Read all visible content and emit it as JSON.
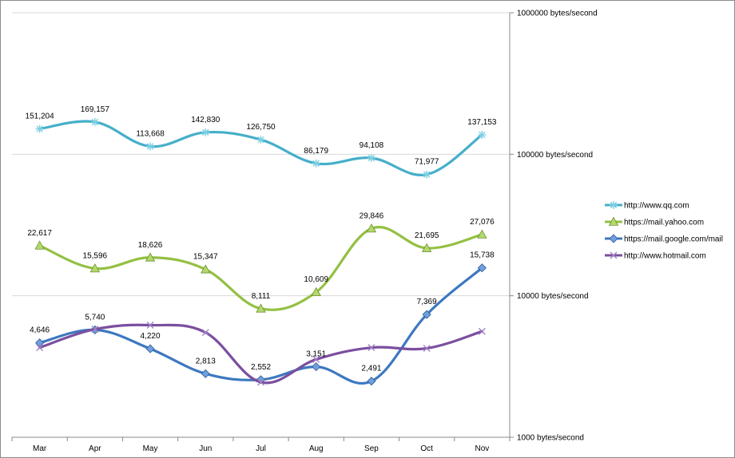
{
  "chart_data": {
    "type": "line",
    "title": "",
    "xlabel": "",
    "ylabel": "",
    "categories": [
      "Mar",
      "Apr",
      "May",
      "Jun",
      "Jul",
      "Aug",
      "Sep",
      "Oct",
      "Nov"
    ],
    "y_axis": {
      "scale": "log",
      "position": "right",
      "ylim": [
        1000,
        1000000
      ],
      "ticks": [
        {
          "value": 1000,
          "label": "1000 bytes/second"
        },
        {
          "value": 10000,
          "label": "10000 bytes/second"
        },
        {
          "value": 100000,
          "label": "100000 bytes/second"
        },
        {
          "value": 1000000,
          "label": "1000000 bytes/second"
        }
      ],
      "grid": true
    },
    "legend": {
      "placement": "right"
    },
    "series": [
      {
        "name": "http://www.qq.com",
        "color": "#45afc9",
        "marker": "asterisk",
        "values": [
          151204,
          169157,
          113668,
          142830,
          126750,
          86179,
          94108,
          71977,
          137153
        ],
        "labels": [
          "151,204",
          "169,157",
          "113,668",
          "142,830",
          "126,750",
          "86,179",
          "94,108",
          "71,977",
          "137,153"
        ]
      },
      {
        "name": "https://mail.yahoo.com",
        "color": "#93c042",
        "marker": "triangle",
        "values": [
          22617,
          15596,
          18626,
          15347,
          8111,
          10609,
          29846,
          21695,
          27076
        ],
        "labels": [
          "22,617",
          "15,596",
          "18,626",
          "15,347",
          "8,111",
          "10,609",
          "29,846",
          "21,695",
          "27,076"
        ]
      },
      {
        "name": "https://mail.google.com/mail",
        "color": "#3d78c0",
        "marker": "diamond",
        "values": [
          4646,
          5740,
          4220,
          2813,
          2552,
          3151,
          2491,
          7369,
          15738
        ],
        "labels": [
          "4,646",
          "5,740",
          "4,220",
          "2,813",
          "2,552",
          "3,151",
          "2,491",
          "7,369",
          "15,738"
        ]
      },
      {
        "name": "http://www.hotmail.com",
        "color": "#7b4fa0",
        "marker": "cross",
        "values": [
          4300,
          5800,
          6200,
          5500,
          2450,
          3550,
          4300,
          4250,
          5600
        ],
        "labels": []
      }
    ]
  }
}
